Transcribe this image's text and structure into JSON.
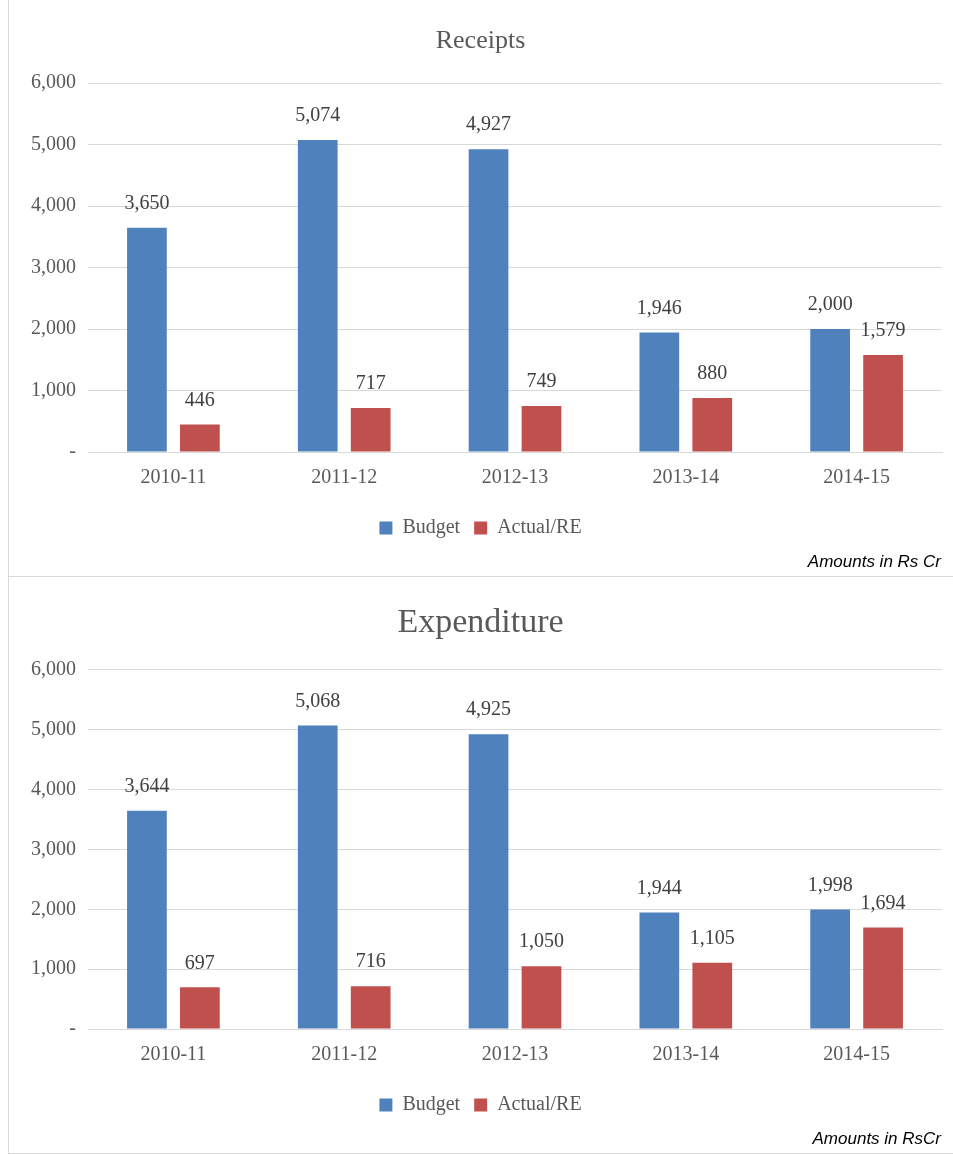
{
  "chart_data": [
    {
      "type": "bar",
      "title": "Receipts",
      "categories": [
        "2010-11",
        "2011-12",
        "2012-13",
        "2013-14",
        "2014-15"
      ],
      "series": [
        {
          "name": "Budget",
          "color": "#4f81bd",
          "values": [
            3650,
            5074,
            4927,
            1946,
            2000
          ],
          "value_labels": [
            "3,650",
            "5,074",
            "4,927",
            "1,946",
            "2,000"
          ]
        },
        {
          "name": "Actual/RE",
          "color": "#c0504d",
          "values": [
            446,
            717,
            749,
            880,
            1579
          ],
          "value_labels": [
            "446",
            "717",
            "749",
            "880",
            "1,579"
          ]
        }
      ],
      "ylim": [
        0,
        6000
      ],
      "yticks": [
        {
          "value": 0,
          "label": "-"
        },
        {
          "value": 1000,
          "label": "1,000"
        },
        {
          "value": 2000,
          "label": "2,000"
        },
        {
          "value": 3000,
          "label": "3,000"
        },
        {
          "value": 4000,
          "label": "4,000"
        },
        {
          "value": 5000,
          "label": "5,000"
        },
        {
          "value": 6000,
          "label": "6,000"
        }
      ],
      "grid": "y",
      "legend": "bottom",
      "annotations": [
        "Amounts in Rs Cr"
      ]
    },
    {
      "type": "bar",
      "title": "Expenditure",
      "categories": [
        "2010-11",
        "2011-12",
        "2012-13",
        "2013-14",
        "2014-15"
      ],
      "series": [
        {
          "name": "Budget",
          "color": "#4f81bd",
          "values": [
            3644,
            5068,
            4925,
            1944,
            1998
          ],
          "value_labels": [
            "3,644",
            "5,068",
            "4,925",
            "1,944",
            "1,998"
          ]
        },
        {
          "name": "Actual/RE",
          "color": "#c0504d",
          "values": [
            697,
            716,
            1050,
            1105,
            1694
          ],
          "value_labels": [
            "697",
            "716",
            "1,050",
            "1,105",
            "1,694"
          ]
        }
      ],
      "ylim": [
        0,
        6000
      ],
      "yticks": [
        {
          "value": 0,
          "label": "-"
        },
        {
          "value": 1000,
          "label": "1,000"
        },
        {
          "value": 2000,
          "label": "2,000"
        },
        {
          "value": 3000,
          "label": "3,000"
        },
        {
          "value": 4000,
          "label": "4,000"
        },
        {
          "value": 5000,
          "label": "5,000"
        },
        {
          "value": 6000,
          "label": "6,000"
        }
      ],
      "grid": "y",
      "legend": "bottom",
      "annotations": [
        "Amounts in RsCr"
      ]
    }
  ]
}
